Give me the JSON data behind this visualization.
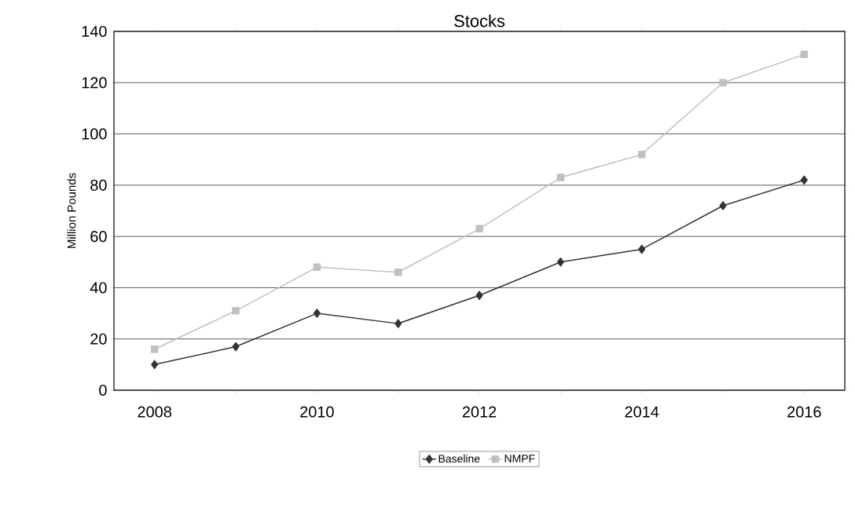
{
  "chart_data": {
    "type": "line",
    "title": "Stocks",
    "ylabel": "Million Pounds",
    "categories": [
      "2008",
      null,
      "2010",
      null,
      "2012",
      null,
      "2014",
      null,
      "2016"
    ],
    "series": [
      {
        "name": "Baseline",
        "color": "#333333",
        "marker": "diamond",
        "values": [
          10,
          17,
          30,
          26,
          37,
          50,
          55,
          72,
          82
        ]
      },
      {
        "name": "NMPF",
        "color": "#c0c0c0",
        "marker": "square",
        "values": [
          16,
          31,
          48,
          46,
          63,
          83,
          92,
          120,
          131
        ]
      }
    ],
    "ylim": [
      0,
      140
    ],
    "yticks": [
      0,
      20,
      40,
      60,
      80,
      100,
      120,
      140
    ],
    "grid": "y",
    "legend": "bottom"
  }
}
